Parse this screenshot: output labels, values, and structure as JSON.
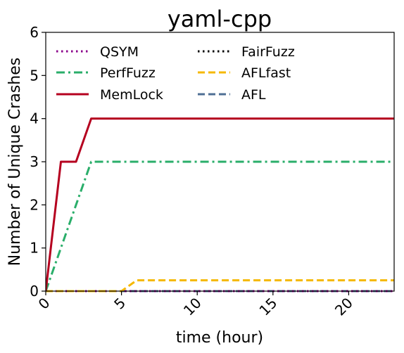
{
  "chart_data": {
    "type": "line",
    "title": "yaml-cpp",
    "xlabel": "time (hour)",
    "ylabel": "Number of Unique Crashes",
    "xlim": [
      0,
      23
    ],
    "ylim": [
      0,
      6
    ],
    "xticks": [
      0,
      5,
      10,
      15,
      20
    ],
    "yticks": [
      0,
      1,
      2,
      3,
      4,
      5,
      6
    ],
    "grid": false,
    "legend_position": "upper-left, two columns",
    "series": [
      {
        "name": "QSYM",
        "color": "#8b008b",
        "style": "dotted",
        "x": [
          0,
          23
        ],
        "y": [
          0,
          0
        ]
      },
      {
        "name": "FairFuzz",
        "color": "#000000",
        "style": "dotted",
        "x": [
          0,
          23
        ],
        "y": [
          0,
          0
        ]
      },
      {
        "name": "PerfFuzz",
        "color": "#2aae6a",
        "style": "dashdot",
        "x": [
          0,
          3,
          23
        ],
        "y": [
          0,
          3,
          3
        ]
      },
      {
        "name": "AFLfast",
        "color": "#f5b800",
        "style": "dashed",
        "x": [
          0,
          5,
          6,
          23
        ],
        "y": [
          0,
          0,
          0.25,
          0.25
        ]
      },
      {
        "name": "MemLock",
        "color": "#b5001f",
        "style": "solid",
        "x": [
          0,
          1,
          2,
          3,
          23
        ],
        "y": [
          0,
          3,
          3,
          4,
          4
        ]
      },
      {
        "name": "AFL",
        "color": "#4f6f94",
        "style": "dashed",
        "x": [
          0,
          23
        ],
        "y": [
          0,
          0
        ]
      }
    ]
  }
}
